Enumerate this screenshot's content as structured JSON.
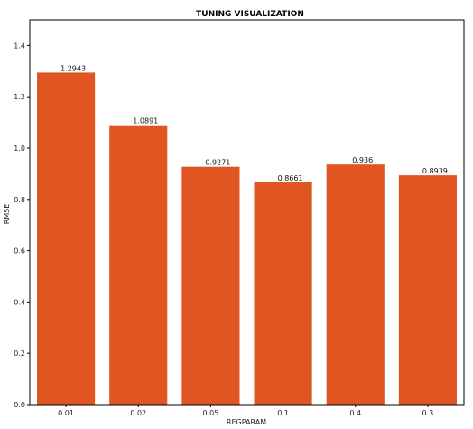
{
  "chart_data": {
    "type": "bar",
    "title": "TUNING VISUALIZATION",
    "xlabel": "REGPARAM",
    "ylabel": "RMSE",
    "categories": [
      "0.01",
      "0.02",
      "0.05",
      "0.1",
      "0.4",
      "0.3"
    ],
    "values": [
      1.2943,
      1.0891,
      0.9271,
      0.8661,
      0.936,
      0.8939
    ],
    "value_labels": [
      "1.2943",
      "1.0891",
      "0.9271",
      "0.8661",
      "0.936",
      "0.8939"
    ],
    "ylim": [
      0,
      1.5
    ],
    "yticks": [
      0.0,
      0.2,
      0.4,
      0.6,
      0.8,
      1.0,
      1.2,
      1.4
    ],
    "ytick_labels": [
      "0.0",
      "0.2",
      "0.4",
      "0.6",
      "0.8",
      "1.0",
      "1.2",
      "1.4"
    ],
    "grid": false,
    "bar_color": "#e05522"
  }
}
